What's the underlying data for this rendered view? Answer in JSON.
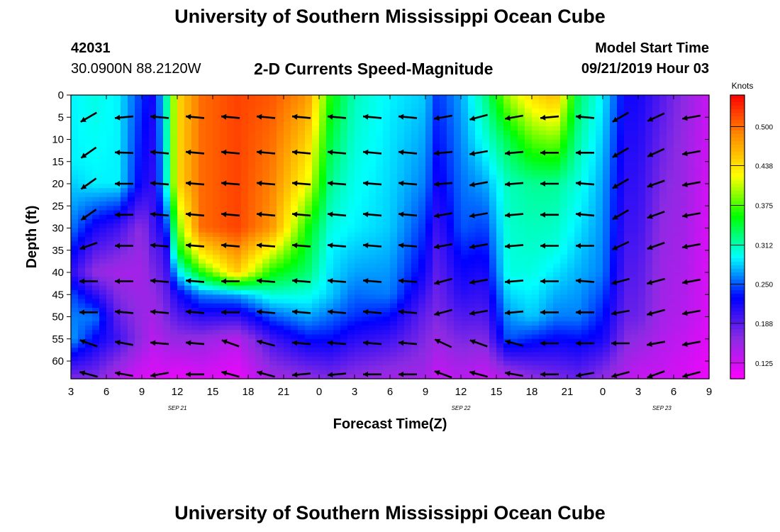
{
  "header": {
    "title": "University of Southern Mississippi Ocean Cube",
    "station_id": "42031",
    "station_coords": "30.0900N 88.2120W",
    "subtitle": "2-D Currents Speed-Magnitude",
    "model_label": "Model Start Time",
    "model_time": "09/21/2019 Hour 03"
  },
  "footer": {
    "title": "University of Southern Mississippi Ocean Cube"
  },
  "chart_data": {
    "type": "heatmap",
    "xlabel": "Forecast Time(Z)",
    "ylabel": "Depth (ft)",
    "x_hours": [
      3,
      6,
      9,
      12,
      15,
      18,
      21,
      24,
      27,
      30,
      33,
      36,
      39,
      42,
      45,
      48,
      51,
      54,
      57
    ],
    "x_tick_labels": [
      "3",
      "6",
      "9",
      "12",
      "15",
      "18",
      "21",
      "0",
      "3",
      "6",
      "9",
      "12",
      "15",
      "18",
      "21",
      "0",
      "3",
      "6",
      "9"
    ],
    "date_labels": [
      {
        "hour": 12,
        "text": "SEP 21"
      },
      {
        "hour": 36,
        "text": "SEP 22"
      },
      {
        "hour": 53,
        "text": "SEP 23"
      }
    ],
    "y_ticks": [
      0,
      5,
      10,
      15,
      20,
      25,
      30,
      35,
      40,
      45,
      50,
      55,
      60
    ],
    "ylim": [
      0,
      64
    ],
    "colorbar": {
      "title": "Knots",
      "ticks": [
        0.125,
        0.188,
        0.25,
        0.312,
        0.375,
        0.438,
        0.5
      ],
      "tick_labels": [
        "0.125",
        "0.188",
        "0.250",
        "0.312",
        "0.375",
        "0.438",
        "0.500"
      ],
      "range": [
        0.1,
        0.55
      ],
      "colors": [
        "#ff00ff",
        "#8a2be2",
        "#0000ff",
        "#00ffff",
        "#00ff00",
        "#ffff00",
        "#ff8c00",
        "#ff0000"
      ]
    },
    "speed_profiles": [
      {
        "hour": 3,
        "depths": [
          0,
          15,
          30,
          40,
          45,
          55,
          64
        ],
        "speeds": [
          0.29,
          0.29,
          0.26,
          0.21,
          0.25,
          0.27,
          0.17
        ]
      },
      {
        "hour": 5,
        "depths": [
          0,
          20,
          30,
          40,
          50,
          64
        ],
        "speeds": [
          0.3,
          0.29,
          0.22,
          0.16,
          0.26,
          0.17
        ]
      },
      {
        "hour": 7,
        "depths": [
          0,
          20,
          30,
          40,
          55,
          64
        ],
        "speeds": [
          0.29,
          0.29,
          0.2,
          0.15,
          0.2,
          0.14
        ]
      },
      {
        "hour": 9,
        "depths": [
          0,
          10,
          20,
          30,
          40,
          55,
          64
        ],
        "speeds": [
          0.24,
          0.23,
          0.22,
          0.16,
          0.15,
          0.16,
          0.12
        ]
      },
      {
        "hour": 10,
        "depths": [
          0,
          30,
          45,
          64
        ],
        "speeds": [
          0.22,
          0.2,
          0.16,
          0.12
        ]
      },
      {
        "hour": 11,
        "depths": [
          0,
          20,
          35,
          50,
          64
        ],
        "speeds": [
          0.3,
          0.29,
          0.2,
          0.17,
          0.12
        ]
      },
      {
        "hour": 12,
        "depths": [
          0,
          20,
          35,
          45,
          55,
          64
        ],
        "speeds": [
          0.44,
          0.44,
          0.35,
          0.22,
          0.16,
          0.11
        ]
      },
      {
        "hour": 14,
        "depths": [
          0,
          30,
          38,
          45,
          55,
          64
        ],
        "speeds": [
          0.5,
          0.5,
          0.4,
          0.26,
          0.16,
          0.12
        ]
      },
      {
        "hour": 17,
        "depths": [
          0,
          30,
          40,
          45,
          55,
          64
        ],
        "speeds": [
          0.52,
          0.52,
          0.45,
          0.27,
          0.14,
          0.11
        ]
      },
      {
        "hour": 20,
        "depths": [
          0,
          30,
          40,
          48,
          55,
          64
        ],
        "speeds": [
          0.51,
          0.48,
          0.36,
          0.27,
          0.2,
          0.15
        ]
      },
      {
        "hour": 23,
        "depths": [
          0,
          20,
          30,
          40,
          50,
          64
        ],
        "speeds": [
          0.48,
          0.42,
          0.36,
          0.33,
          0.27,
          0.16
        ]
      },
      {
        "hour": 25,
        "depths": [
          0,
          25,
          35,
          45,
          55,
          64
        ],
        "speeds": [
          0.36,
          0.31,
          0.29,
          0.28,
          0.23,
          0.17
        ]
      },
      {
        "hour": 27,
        "depths": [
          0,
          30,
          40,
          50,
          64
        ],
        "speeds": [
          0.31,
          0.29,
          0.27,
          0.24,
          0.16
        ]
      },
      {
        "hour": 30,
        "depths": [
          0,
          30,
          45,
          55,
          64
        ],
        "speeds": [
          0.29,
          0.28,
          0.26,
          0.2,
          0.15
        ]
      },
      {
        "hour": 33,
        "depths": [
          0,
          20,
          40,
          50,
          64
        ],
        "speeds": [
          0.28,
          0.26,
          0.22,
          0.18,
          0.15
        ]
      },
      {
        "hour": 34,
        "depths": [
          0,
          20,
          35,
          50,
          64
        ],
        "speeds": [
          0.24,
          0.22,
          0.19,
          0.17,
          0.13
        ]
      },
      {
        "hour": 36,
        "depths": [
          0,
          30,
          45,
          64
        ],
        "speeds": [
          0.27,
          0.25,
          0.21,
          0.14
        ]
      },
      {
        "hour": 38,
        "depths": [
          0,
          10,
          20,
          35,
          50,
          64
        ],
        "speeds": [
          0.32,
          0.3,
          0.27,
          0.23,
          0.19,
          0.13
        ]
      },
      {
        "hour": 40,
        "depths": [
          0,
          10,
          20,
          40,
          55,
          64
        ],
        "speeds": [
          0.4,
          0.34,
          0.31,
          0.3,
          0.25,
          0.14
        ]
      },
      {
        "hour": 42,
        "depths": [
          0,
          10,
          20,
          40,
          50,
          64
        ],
        "speeds": [
          0.44,
          0.38,
          0.32,
          0.3,
          0.28,
          0.16
        ]
      },
      {
        "hour": 44,
        "depths": [
          0,
          10,
          20,
          35,
          50,
          64
        ],
        "speeds": [
          0.46,
          0.39,
          0.32,
          0.3,
          0.26,
          0.17
        ]
      },
      {
        "hour": 46,
        "depths": [
          0,
          20,
          35,
          50,
          64
        ],
        "speeds": [
          0.33,
          0.3,
          0.28,
          0.26,
          0.18
        ]
      },
      {
        "hour": 48,
        "depths": [
          0,
          20,
          40,
          55,
          64
        ],
        "speeds": [
          0.29,
          0.27,
          0.26,
          0.22,
          0.16
        ]
      },
      {
        "hour": 50,
        "depths": [
          0,
          30,
          50,
          64
        ],
        "speeds": [
          0.22,
          0.2,
          0.18,
          0.14
        ]
      },
      {
        "hour": 51,
        "depths": [
          0,
          30,
          50,
          64
        ],
        "speeds": [
          0.22,
          0.2,
          0.18,
          0.13
        ]
      },
      {
        "hour": 53,
        "depths": [
          0,
          30,
          50,
          64
        ],
        "speeds": [
          0.19,
          0.16,
          0.15,
          0.13
        ]
      },
      {
        "hour": 55,
        "depths": [
          0,
          30,
          50,
          64
        ],
        "speeds": [
          0.16,
          0.15,
          0.14,
          0.12
        ]
      },
      {
        "hour": 57,
        "depths": [
          0,
          30,
          50,
          64
        ],
        "speeds": [
          0.13,
          0.12,
          0.12,
          0.11
        ]
      }
    ],
    "vector_hours": [
      4.5,
      7.5,
      10.5,
      13.5,
      16.5,
      19.5,
      22.5,
      25.5,
      28.5,
      31.5,
      34.5,
      37.5,
      40.5,
      43.5,
      46.5,
      49.5,
      52.5,
      55.5
    ],
    "vector_depths": [
      5,
      13,
      20,
      27,
      34,
      42,
      49,
      56,
      63
    ],
    "vector_directions_deg": [
      [
        210,
        185,
        175,
        175,
        175,
        175,
        175,
        175,
        175,
        175,
        190,
        195,
        190,
        185,
        175,
        210,
        205,
        190
      ],
      [
        215,
        178,
        175,
        175,
        175,
        175,
        175,
        175,
        175,
        175,
        185,
        190,
        185,
        180,
        180,
        210,
        205,
        190
      ],
      [
        215,
        180,
        175,
        175,
        175,
        175,
        175,
        175,
        175,
        175,
        185,
        190,
        185,
        180,
        175,
        210,
        200,
        190
      ],
      [
        215,
        180,
        175,
        175,
        175,
        175,
        175,
        175,
        175,
        175,
        190,
        190,
        185,
        180,
        175,
        210,
        200,
        190
      ],
      [
        200,
        180,
        175,
        175,
        175,
        175,
        175,
        175,
        175,
        175,
        190,
        190,
        185,
        180,
        180,
        205,
        200,
        190
      ],
      [
        180,
        180,
        175,
        175,
        180,
        175,
        175,
        175,
        175,
        175,
        195,
        190,
        185,
        180,
        175,
        195,
        195,
        190
      ],
      [
        180,
        175,
        175,
        175,
        180,
        175,
        175,
        175,
        175,
        175,
        195,
        190,
        185,
        180,
        180,
        190,
        195,
        190
      ],
      [
        160,
        170,
        175,
        175,
        160,
        165,
        175,
        175,
        175,
        175,
        155,
        160,
        165,
        180,
        180,
        180,
        190,
        190
      ],
      [
        165,
        170,
        190,
        180,
        165,
        165,
        185,
        185,
        180,
        180,
        160,
        165,
        170,
        180,
        190,
        195,
        200,
        195
      ]
    ]
  }
}
